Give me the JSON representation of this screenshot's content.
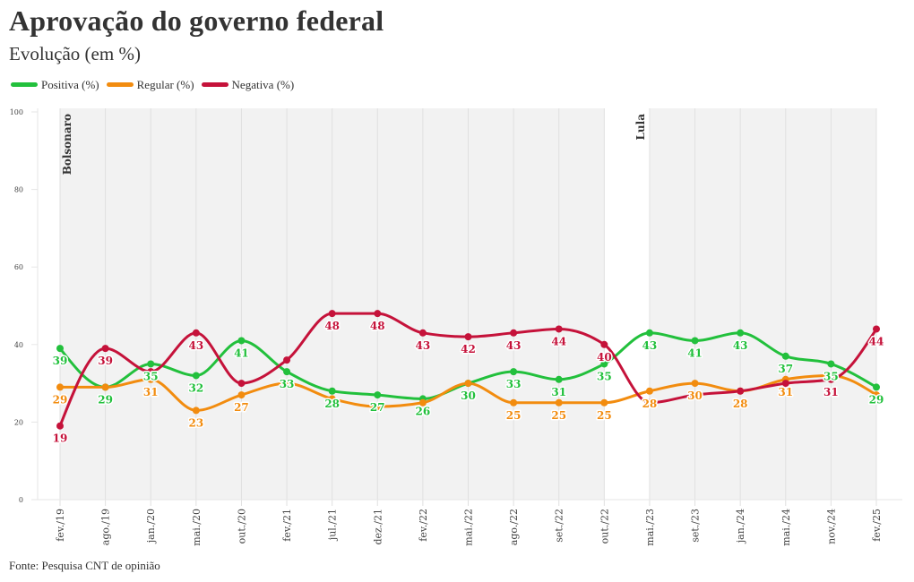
{
  "header": {
    "title": "Aprovação do governo federal",
    "subtitle": "Evolução (em %)"
  },
  "footer": {
    "source": "Fonte: Pesquisa CNT de opinião"
  },
  "chart_data": {
    "type": "line",
    "title": "Aprovação do governo federal",
    "subtitle": "Evolução (em %)",
    "xlabel": "",
    "ylabel": "",
    "ylim": [
      0,
      100
    ],
    "yticks": [
      0,
      20,
      40,
      60,
      80,
      100
    ],
    "grid": "vertical",
    "legend": "top-left",
    "categories": [
      "fev./19",
      "ago./19",
      "jan./20",
      "mai./20",
      "out./20",
      "fev./21",
      "jul./21",
      "dez./21",
      "fev./22",
      "mai./22",
      "ago./22",
      "set./22",
      "out./22",
      "mai./23",
      "set./23",
      "jan./24",
      "mai./24",
      "nov./24",
      "fev./25"
    ],
    "series": [
      {
        "name": "Positiva (%)",
        "color": "#22c03c",
        "values": [
          39,
          29,
          35,
          32,
          41,
          33,
          28,
          27,
          26,
          30,
          33,
          31,
          35,
          43,
          41,
          43,
          37,
          35,
          29
        ],
        "labels": [
          39,
          29,
          35,
          32,
          41,
          33,
          28,
          27,
          26,
          30,
          33,
          31,
          35,
          43,
          41,
          43,
          37,
          35,
          29
        ]
      },
      {
        "name": "Regular (%)",
        "color": "#f28c0f",
        "values": [
          29,
          29,
          31,
          23,
          27,
          30,
          26,
          24,
          25,
          30,
          25,
          25,
          25,
          28,
          30,
          28,
          31,
          32,
          27
        ],
        "labels": [
          29,
          null,
          31,
          23,
          27,
          null,
          null,
          null,
          null,
          null,
          25,
          25,
          25,
          28,
          30,
          28,
          31,
          null,
          null
        ]
      },
      {
        "name": "Negativa (%)",
        "color": "#c5123a",
        "values": [
          19,
          39,
          33,
          43,
          30,
          36,
          48,
          48,
          43,
          42,
          43,
          44,
          40,
          25,
          27,
          28,
          30,
          31,
          44
        ],
        "labels": [
          19,
          39,
          null,
          43,
          null,
          null,
          48,
          48,
          43,
          42,
          43,
          44,
          40,
          null,
          null,
          null,
          null,
          31,
          44
        ]
      }
    ],
    "annotations": [
      {
        "text": "Bolsonaro",
        "from": "fev./19",
        "to": "out./22"
      },
      {
        "text": "Lula",
        "from": "mai./23",
        "to": "fev./25"
      }
    ],
    "source": "Fonte: Pesquisa CNT de opinião"
  }
}
